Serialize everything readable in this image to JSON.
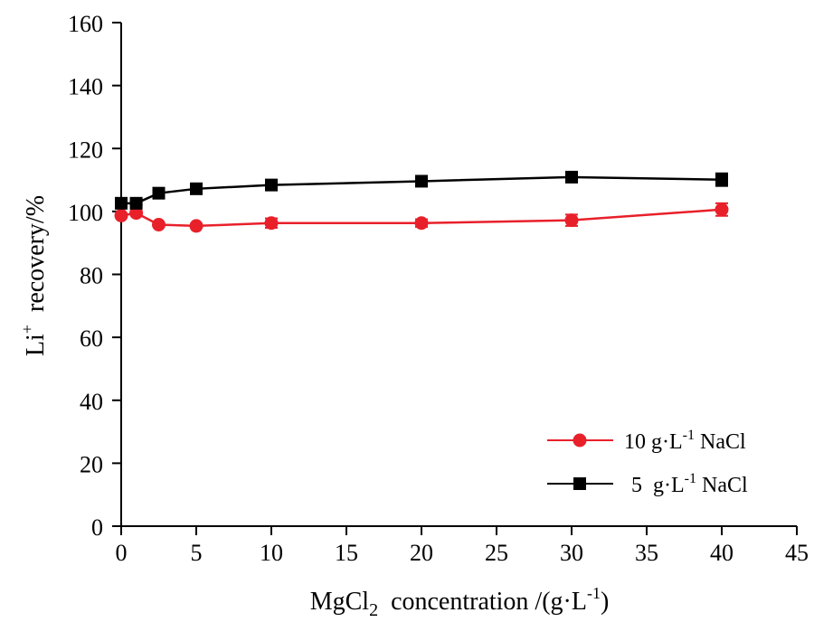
{
  "chart_data": {
    "type": "line",
    "title": "",
    "xlabel": {
      "main": "MgCl",
      "sub": "2",
      "rest": "  concentration /(g·L",
      "sup": "-1",
      "end": ")"
    },
    "ylabel": {
      "main": "Li",
      "sup": "+",
      "rest": "  recovery/%"
    },
    "xlim": [
      0,
      45
    ],
    "ylim": [
      0,
      160
    ],
    "xticks": [
      0,
      5,
      10,
      15,
      20,
      25,
      30,
      35,
      40,
      45
    ],
    "yticks": [
      0,
      20,
      40,
      60,
      80,
      100,
      120,
      140,
      160
    ],
    "grid": false,
    "legend_position": "bottom-right",
    "x": [
      0,
      1,
      2.5,
      5,
      10,
      20,
      30,
      40
    ],
    "series": [
      {
        "name": "10 g·L-1 NaCl",
        "legend": {
          "pre": "10 g·L",
          "sup": "-1",
          "post": " NaCl"
        },
        "marker": "circle",
        "color": "#e8202a",
        "values": [
          98.7,
          99.5,
          95.8,
          95.4,
          96.3,
          96.3,
          97.2,
          100.6
        ],
        "errors": [
          0.5,
          0.5,
          0.5,
          0.5,
          1.5,
          1.2,
          1.8,
          2.0
        ]
      },
      {
        "name": "5 g·L-1 NaCl",
        "legend": {
          "pre": "5  g·L",
          "sup": "-1",
          "post": " NaCl"
        },
        "marker": "square",
        "color": "#000000",
        "values": [
          102.6,
          102.6,
          105.8,
          107.2,
          108.4,
          109.6,
          110.9,
          110.1
        ],
        "errors": [
          0.5,
          0.5,
          0.5,
          0.5,
          0.7,
          0.6,
          0.8,
          2.0
        ]
      }
    ]
  }
}
